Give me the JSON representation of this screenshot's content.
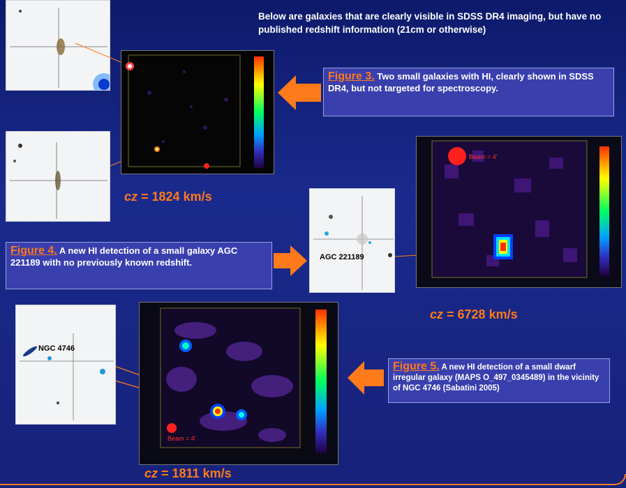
{
  "header_text": "Below are galaxies that are clearly visible in SDSS DR4 imaging, but have no published redshift information (21cm or otherwise)",
  "figure3": {
    "label": "Figure 3.",
    "text": " Two small galaxies with HI, clearly shown in SDSS DR4, but not targeted for spectroscopy."
  },
  "figure4": {
    "label": "Figure 4.",
    "text": "  A new HI detection of a small galaxy AGC 221189 with no previously known redshift."
  },
  "figure5": {
    "label": "Figure 5.",
    "text": " A new HI detection of a small dwarf irregular galaxy (MAPS O_497_0345489) in the vicinity of NGC 4746 (Sabatini 2005)"
  },
  "cz_labels": {
    "var": "cz",
    "value1": " = 1824 km/s",
    "value2": " = 6728 km/s",
    "value3": " = 1811 km/s"
  },
  "optical_labels": {
    "agc": "AGC 221189",
    "ngc": "NGC 4746"
  },
  "beam_labels": {
    "map2": "Beam = 4'",
    "map3": "Beam = 4'"
  },
  "colors": {
    "accent": "#ff7a1a",
    "caption_bg": "#3a3fae",
    "background": "#16227a"
  }
}
